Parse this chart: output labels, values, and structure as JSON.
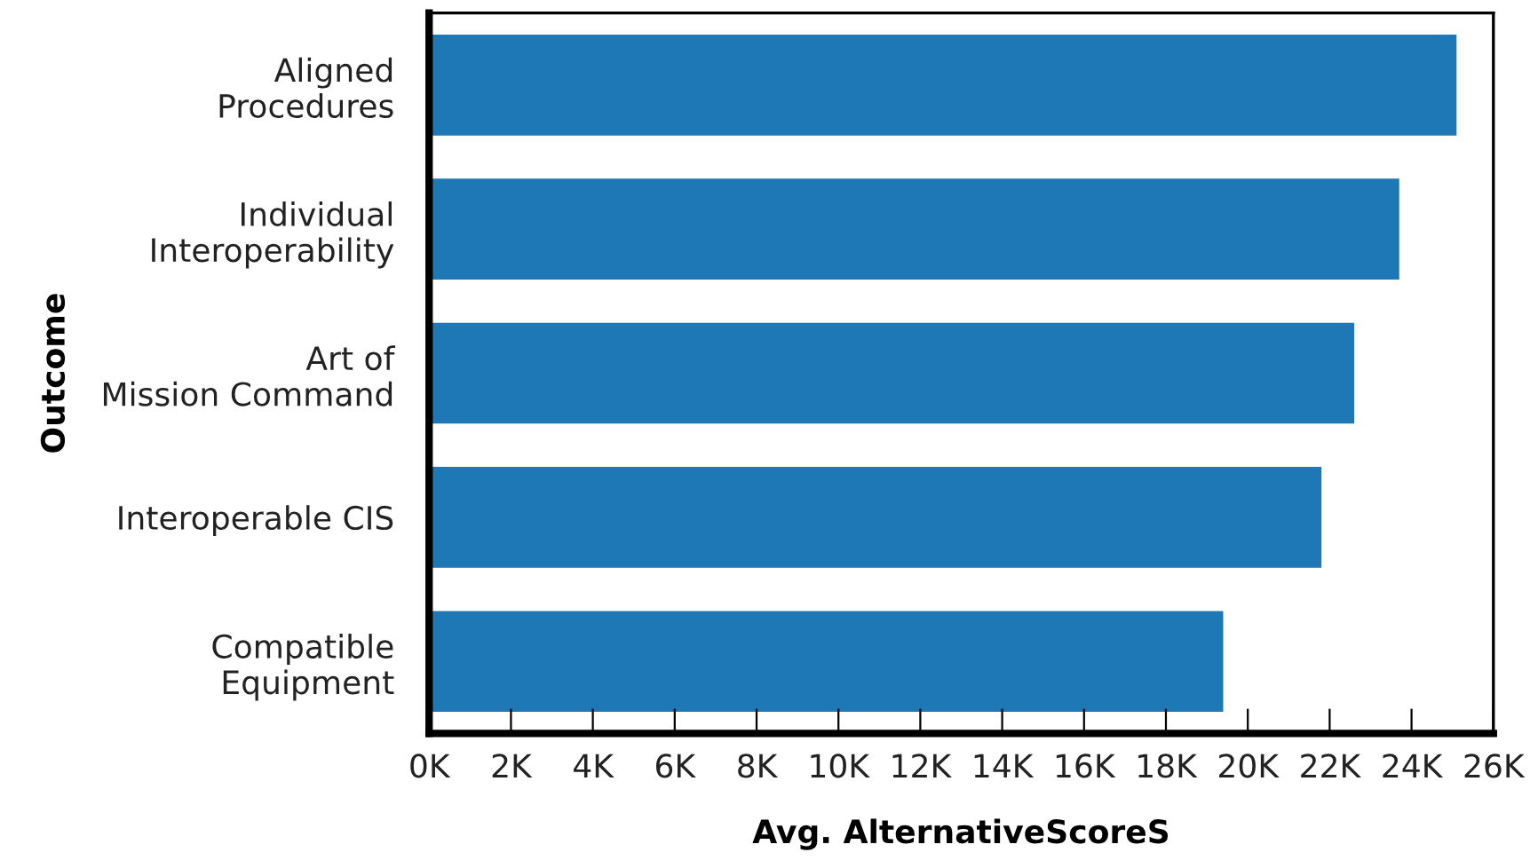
{
  "chart_data": {
    "type": "bar",
    "orientation": "horizontal",
    "categories": [
      "Aligned\nProcedures",
      "Individual\nInteroperability",
      "Art of\nMission Command",
      "Interoperable CIS",
      "Compatible\nEquipment"
    ],
    "values": [
      25100,
      23700,
      22600,
      21800,
      19400
    ],
    "color": "#1d78b5",
    "xlabel": "Avg. AlternativeScoreS",
    "ylabel": "Outcome",
    "xlim": [
      0,
      26000
    ],
    "xticks": [
      {
        "value": 0,
        "label": "0K"
      },
      {
        "value": 2000,
        "label": "2K"
      },
      {
        "value": 4000,
        "label": "4K"
      },
      {
        "value": 6000,
        "label": "6K"
      },
      {
        "value": 8000,
        "label": "8K"
      },
      {
        "value": 10000,
        "label": "10K"
      },
      {
        "value": 12000,
        "label": "12K"
      },
      {
        "value": 14000,
        "label": "14K"
      },
      {
        "value": 16000,
        "label": "16K"
      },
      {
        "value": 18000,
        "label": "18K"
      },
      {
        "value": 20000,
        "label": "20K"
      },
      {
        "value": 22000,
        "label": "22K"
      },
      {
        "value": 24000,
        "label": "24K"
      },
      {
        "value": 26000,
        "label": "26K"
      }
    ],
    "grid": false,
    "legend": false
  }
}
